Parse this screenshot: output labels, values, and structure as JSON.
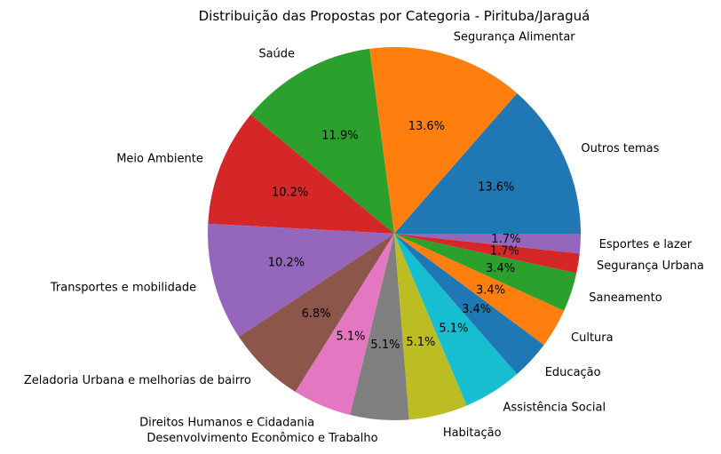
{
  "chart_data": {
    "type": "pie",
    "title": "Distribuição das Propostas por Categoria - Pirituba/Jaraguá",
    "slices": [
      {
        "label": "Outros temas",
        "value": 13.6,
        "pct_label": "13.6%",
        "color": "#1f77b4"
      },
      {
        "label": "Segurança Alimentar",
        "value": 13.6,
        "pct_label": "13.6%",
        "color": "#ff7f0e"
      },
      {
        "label": "Saúde",
        "value": 11.9,
        "pct_label": "11.9%",
        "color": "#2ca02c"
      },
      {
        "label": "Meio Ambiente",
        "value": 10.2,
        "pct_label": "10.2%",
        "color": "#d62728"
      },
      {
        "label": "Transportes e mobilidade",
        "value": 10.2,
        "pct_label": "10.2%",
        "color": "#9467bd"
      },
      {
        "label": "Zeladoria Urbana e melhorias de bairro",
        "value": 6.8,
        "pct_label": "6.8%",
        "color": "#8c564b"
      },
      {
        "label": "Direitos Humanos e Cidadania",
        "value": 5.1,
        "pct_label": "5.1%",
        "color": "#e377c2"
      },
      {
        "label": "Desenvolvimento Econômico e Trabalho",
        "value": 5.1,
        "pct_label": "5.1%",
        "color": "#7f7f7f"
      },
      {
        "label": "Habitação",
        "value": 5.1,
        "pct_label": "5.1%",
        "color": "#bcbd22"
      },
      {
        "label": "Assistência Social",
        "value": 5.1,
        "pct_label": "5.1%",
        "color": "#17becf"
      },
      {
        "label": "Educação",
        "value": 3.4,
        "pct_label": "3.4%",
        "color": "#1f77b4"
      },
      {
        "label": "Cultura",
        "value": 3.4,
        "pct_label": "3.4%",
        "color": "#ff7f0e"
      },
      {
        "label": "Saneamento",
        "value": 3.4,
        "pct_label": "3.4%",
        "color": "#2ca02c"
      },
      {
        "label": "Segurança Urbana",
        "value": 1.7,
        "pct_label": "1.7%",
        "color": "#d62728"
      },
      {
        "label": "Esportes e lazer",
        "value": 1.7,
        "pct_label": "1.7%",
        "color": "#9467bd"
      }
    ],
    "start_angle_deg": 0,
    "direction": "counterclockwise"
  }
}
